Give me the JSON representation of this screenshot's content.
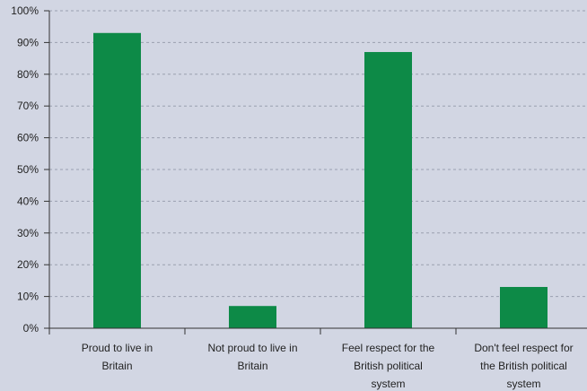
{
  "chart_data": {
    "type": "bar",
    "categories": [
      [
        "Proud to live in",
        "Britain"
      ],
      [
        "Not proud to live in",
        "Britain"
      ],
      [
        "Feel respect for the",
        "British political",
        "system"
      ],
      [
        "Don't feel respect for",
        "the British political",
        "system"
      ]
    ],
    "values": [
      93,
      7,
      87,
      13
    ],
    "ylim": [
      0,
      100
    ],
    "yticks": [
      "0%",
      "10%",
      "20%",
      "30%",
      "40%",
      "50%",
      "60%",
      "70%",
      "80%",
      "90%",
      "100%"
    ],
    "grid": true,
    "bar_color": "#0d8a47",
    "background_color": "#d2d6e3"
  }
}
